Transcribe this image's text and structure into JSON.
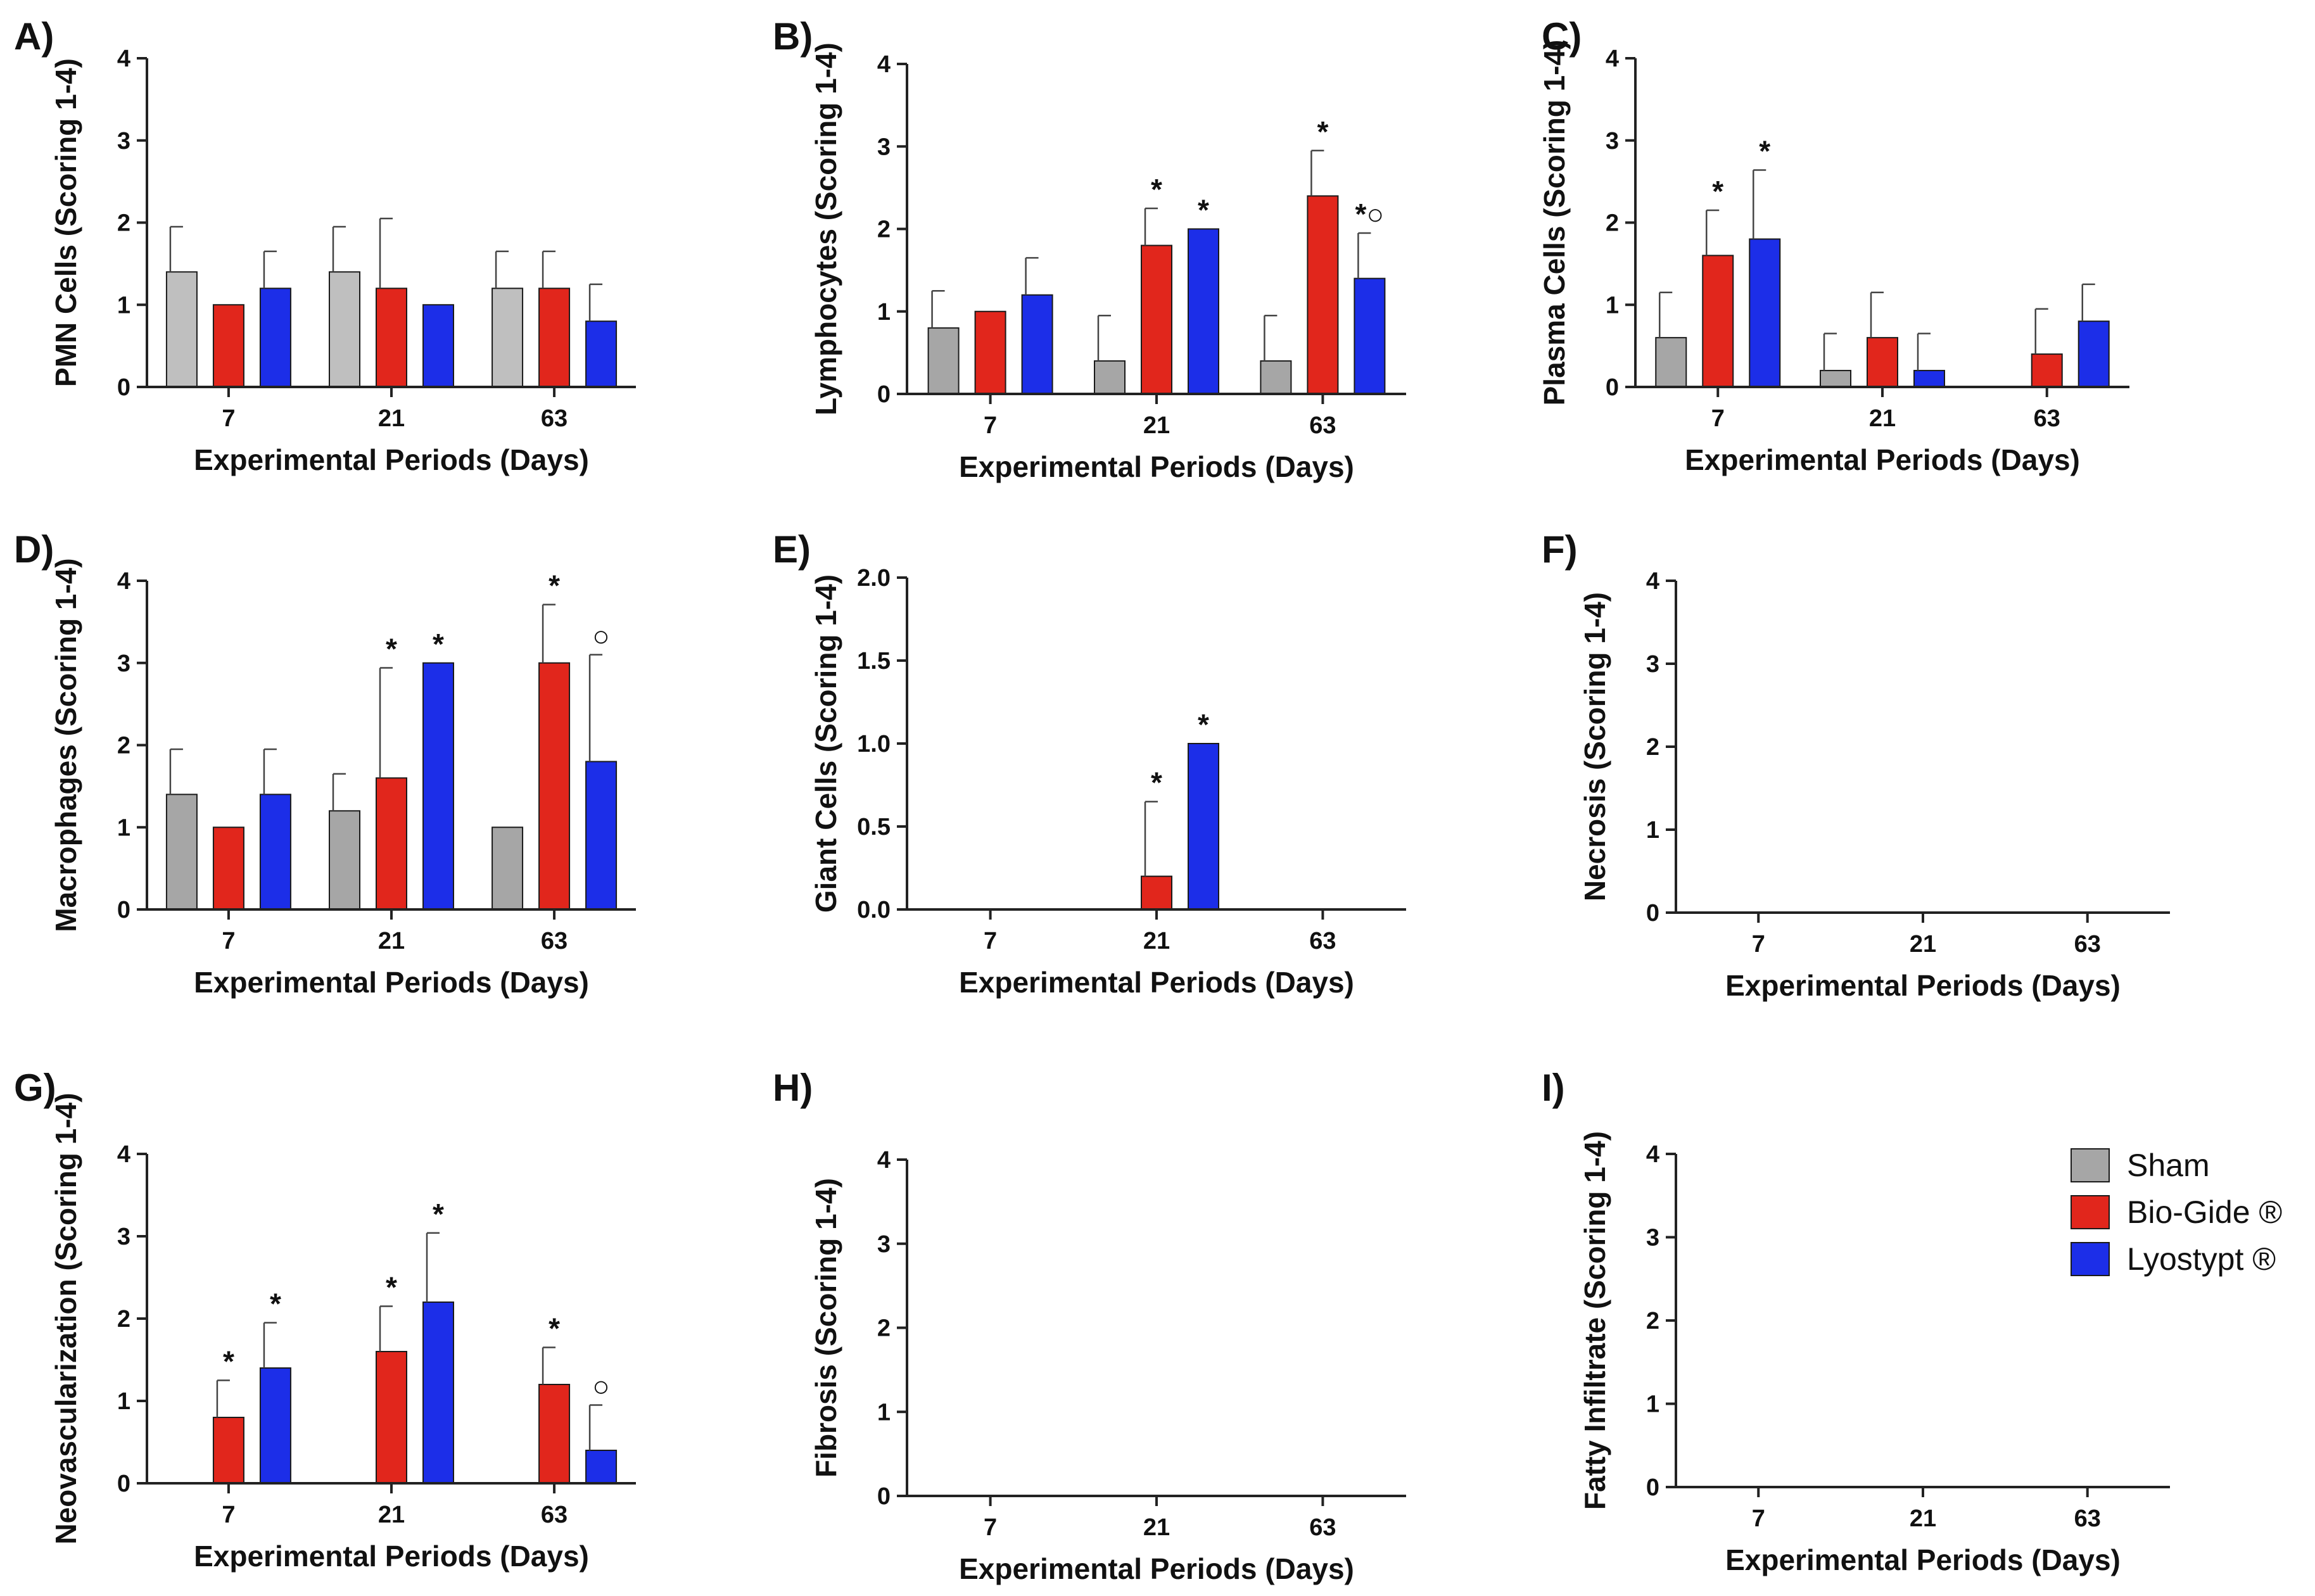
{
  "legend": [
    {
      "name": "Sham",
      "color": "#a6a6a6"
    },
    {
      "name": "Bio-Gide ®",
      "color": "#e1261c"
    },
    {
      "name": "Lyostypt ®",
      "color": "#1c2ee8"
    }
  ],
  "chart_data": [
    {
      "type": "bar",
      "panel": "A)",
      "title": "",
      "xlabel": "Experimental Periods (Days)",
      "ylabel": "PMN Cells (Scoring 1-4)",
      "categories": [
        "7",
        "21",
        "63"
      ],
      "ylim": [
        0,
        4
      ],
      "yticks": [
        "0",
        "1",
        "2",
        "3",
        "4"
      ],
      "series": [
        {
          "name": "Sham",
          "color": "#bfbfbf",
          "values": [
            1.4,
            1.4,
            1.2
          ],
          "errors": [
            0.55,
            0.55,
            0.45
          ],
          "marks": [
            "",
            "",
            ""
          ]
        },
        {
          "name": "Bio-Gide ®",
          "color": "#e1261c",
          "values": [
            1.0,
            1.2,
            1.2
          ],
          "errors": [
            0,
            0.85,
            0.45
          ],
          "marks": [
            "",
            "",
            ""
          ]
        },
        {
          "name": "Lyostypt ®",
          "color": "#1c2ee8",
          "values": [
            1.2,
            1.0,
            0.8
          ],
          "errors": [
            0.45,
            0,
            0.45
          ],
          "marks": [
            "",
            "",
            ""
          ]
        }
      ]
    },
    {
      "type": "bar",
      "panel": "B)",
      "title": "",
      "xlabel": "Experimental Periods (Days)",
      "ylabel": "Lymphocytes (Scoring 1-4)",
      "categories": [
        "7",
        "21",
        "63"
      ],
      "ylim": [
        0,
        4
      ],
      "yticks": [
        "0",
        "1",
        "2",
        "3",
        "4"
      ],
      "series": [
        {
          "name": "Sham",
          "color": "#a6a6a6",
          "values": [
            0.8,
            0.4,
            0.4
          ],
          "errors": [
            0.45,
            0.55,
            0.55
          ],
          "marks": [
            "",
            "",
            ""
          ]
        },
        {
          "name": "Bio-Gide ®",
          "color": "#e1261c",
          "values": [
            1.0,
            1.8,
            2.4
          ],
          "errors": [
            0,
            0.45,
            0.55
          ],
          "marks": [
            "",
            "*",
            "*"
          ]
        },
        {
          "name": "Lyostypt ®",
          "color": "#1c2ee8",
          "values": [
            1.2,
            2.0,
            1.4
          ],
          "errors": [
            0.45,
            0,
            0.55
          ],
          "marks": [
            "",
            "*",
            "*○"
          ]
        }
      ]
    },
    {
      "type": "bar",
      "panel": "C)",
      "title": "",
      "xlabel": "Experimental Periods (Days)",
      "ylabel": "Plasma Cells (Scoring 1-4)",
      "categories": [
        "7",
        "21",
        "63"
      ],
      "ylim": [
        0,
        4
      ],
      "yticks": [
        "0",
        "1",
        "2",
        "3",
        "4"
      ],
      "series": [
        {
          "name": "Sham",
          "color": "#a6a6a6",
          "values": [
            0.6,
            0.2,
            0.0
          ],
          "errors": [
            0.55,
            0.45,
            0
          ],
          "marks": [
            "",
            "",
            ""
          ]
        },
        {
          "name": "Bio-Gide ®",
          "color": "#e1261c",
          "values": [
            1.6,
            0.6,
            0.4
          ],
          "errors": [
            0.55,
            0.55,
            0.55
          ],
          "marks": [
            "*",
            "",
            ""
          ]
        },
        {
          "name": "Lyostypt ®",
          "color": "#1c2ee8",
          "values": [
            1.8,
            0.2,
            0.8
          ],
          "errors": [
            0.84,
            0.45,
            0.45
          ],
          "marks": [
            "*",
            "",
            ""
          ]
        }
      ]
    },
    {
      "type": "bar",
      "panel": "D)",
      "title": "",
      "xlabel": "Experimental Periods (Days)",
      "ylabel": "Macrophages (Scoring 1-4)",
      "categories": [
        "7",
        "21",
        "63"
      ],
      "ylim": [
        0,
        4
      ],
      "yticks": [
        "0",
        "1",
        "2",
        "3",
        "4"
      ],
      "series": [
        {
          "name": "Sham",
          "color": "#a6a6a6",
          "values": [
            1.4,
            1.2,
            1.0
          ],
          "errors": [
            0.55,
            0.45,
            0
          ],
          "marks": [
            "",
            "",
            ""
          ]
        },
        {
          "name": "Bio-Gide ®",
          "color": "#e1261c",
          "values": [
            1.0,
            1.6,
            3.0
          ],
          "errors": [
            0,
            1.34,
            0.71
          ],
          "marks": [
            "",
            "*",
            "*"
          ]
        },
        {
          "name": "Lyostypt ®",
          "color": "#1c2ee8",
          "values": [
            1.4,
            3.0,
            1.8
          ],
          "errors": [
            0.55,
            0,
            1.3
          ],
          "marks": [
            "",
            "*",
            "○"
          ]
        }
      ]
    },
    {
      "type": "bar",
      "panel": "E)",
      "title": "",
      "xlabel": "Experimental Periods (Days)",
      "ylabel": "Giant Cells (Scoring 1-4)",
      "categories": [
        "7",
        "21",
        "63"
      ],
      "ylim": [
        0,
        2
      ],
      "yticks": [
        "0.0",
        "0.5",
        "1.0",
        "1.5",
        "2.0"
      ],
      "series": [
        {
          "name": "Sham",
          "color": "#a6a6a6",
          "values": [
            0,
            0,
            0
          ],
          "errors": [
            0,
            0,
            0
          ],
          "marks": [
            "",
            "",
            ""
          ]
        },
        {
          "name": "Bio-Gide ®",
          "color": "#e1261c",
          "values": [
            0,
            0.2,
            0
          ],
          "errors": [
            0,
            0.45,
            0
          ],
          "marks": [
            "",
            "*",
            ""
          ]
        },
        {
          "name": "Lyostypt ®",
          "color": "#1c2ee8",
          "values": [
            0,
            1.0,
            0
          ],
          "errors": [
            0,
            0,
            0
          ],
          "marks": [
            "",
            "*",
            ""
          ]
        }
      ]
    },
    {
      "type": "bar",
      "panel": "F)",
      "title": "",
      "xlabel": "Experimental Periods (Days)",
      "ylabel": "Necrosis (Scoring 1-4)",
      "categories": [
        "7",
        "21",
        "63"
      ],
      "ylim": [
        0,
        4
      ],
      "yticks": [
        "0",
        "1",
        "2",
        "3",
        "4"
      ],
      "series": [
        {
          "name": "Sham",
          "color": "#a6a6a6",
          "values": [
            0,
            0,
            0
          ],
          "errors": [
            0,
            0,
            0
          ],
          "marks": [
            "",
            "",
            ""
          ]
        },
        {
          "name": "Bio-Gide ®",
          "color": "#e1261c",
          "values": [
            0,
            0,
            0
          ],
          "errors": [
            0,
            0,
            0
          ],
          "marks": [
            "",
            "",
            ""
          ]
        },
        {
          "name": "Lyostypt ®",
          "color": "#1c2ee8",
          "values": [
            0,
            0,
            0
          ],
          "errors": [
            0,
            0,
            0
          ],
          "marks": [
            "",
            "",
            ""
          ]
        }
      ]
    },
    {
      "type": "bar",
      "panel": "G)",
      "title": "",
      "xlabel": "Experimental Periods (Days)",
      "ylabel": "Neovascularization (Scoring 1-4)",
      "categories": [
        "7",
        "21",
        "63"
      ],
      "ylim": [
        0,
        4
      ],
      "yticks": [
        "0",
        "1",
        "2",
        "3",
        "4"
      ],
      "series": [
        {
          "name": "Sham",
          "color": "#a6a6a6",
          "values": [
            0,
            0,
            0
          ],
          "errors": [
            0,
            0,
            0
          ],
          "marks": [
            "",
            "",
            ""
          ]
        },
        {
          "name": "Bio-Gide ®",
          "color": "#e1261c",
          "values": [
            0.8,
            1.6,
            1.2
          ],
          "errors": [
            0.45,
            0.55,
            0.45
          ],
          "marks": [
            "*",
            "*",
            "*"
          ]
        },
        {
          "name": "Lyostypt ®",
          "color": "#1c2ee8",
          "values": [
            1.4,
            2.2,
            0.4
          ],
          "errors": [
            0.55,
            0.84,
            0.55
          ],
          "marks": [
            "*",
            "*",
            "○"
          ]
        }
      ]
    },
    {
      "type": "bar",
      "panel": "H)",
      "title": "",
      "xlabel": "Experimental Periods (Days)",
      "ylabel": "Fibrosis (Scoring 1-4)",
      "categories": [
        "7",
        "21",
        "63"
      ],
      "ylim": [
        0,
        4
      ],
      "yticks": [
        "0",
        "1",
        "2",
        "3",
        "4"
      ],
      "series": [
        {
          "name": "Sham",
          "color": "#a6a6a6",
          "values": [
            0,
            0,
            0
          ],
          "errors": [
            0,
            0,
            0
          ],
          "marks": [
            "",
            "",
            ""
          ]
        },
        {
          "name": "Bio-Gide ®",
          "color": "#e1261c",
          "values": [
            0,
            0,
            0
          ],
          "errors": [
            0,
            0,
            0
          ],
          "marks": [
            "",
            "",
            ""
          ]
        },
        {
          "name": "Lyostypt ®",
          "color": "#1c2ee8",
          "values": [
            0,
            0,
            0
          ],
          "errors": [
            0,
            0,
            0
          ],
          "marks": [
            "",
            "",
            ""
          ]
        }
      ]
    },
    {
      "type": "bar",
      "panel": "I)",
      "title": "",
      "xlabel": "Experimental Periods (Days)",
      "ylabel": "Fatty Infiltrate (Scoring 1-4)",
      "categories": [
        "7",
        "21",
        "63"
      ],
      "ylim": [
        0,
        4
      ],
      "yticks": [
        "0",
        "1",
        "2",
        "3",
        "4"
      ],
      "series": [
        {
          "name": "Sham",
          "color": "#a6a6a6",
          "values": [
            0,
            0,
            0
          ],
          "errors": [
            0,
            0,
            0
          ],
          "marks": [
            "",
            "",
            ""
          ]
        },
        {
          "name": "Bio-Gide ®",
          "color": "#e1261c",
          "values": [
            0,
            0,
            0
          ],
          "errors": [
            0,
            0,
            0
          ],
          "marks": [
            "",
            "",
            ""
          ]
        },
        {
          "name": "Lyostypt ®",
          "color": "#1c2ee8",
          "values": [
            0,
            0,
            0
          ],
          "errors": [
            0,
            0,
            0
          ],
          "marks": [
            "",
            "",
            ""
          ]
        }
      ]
    }
  ]
}
